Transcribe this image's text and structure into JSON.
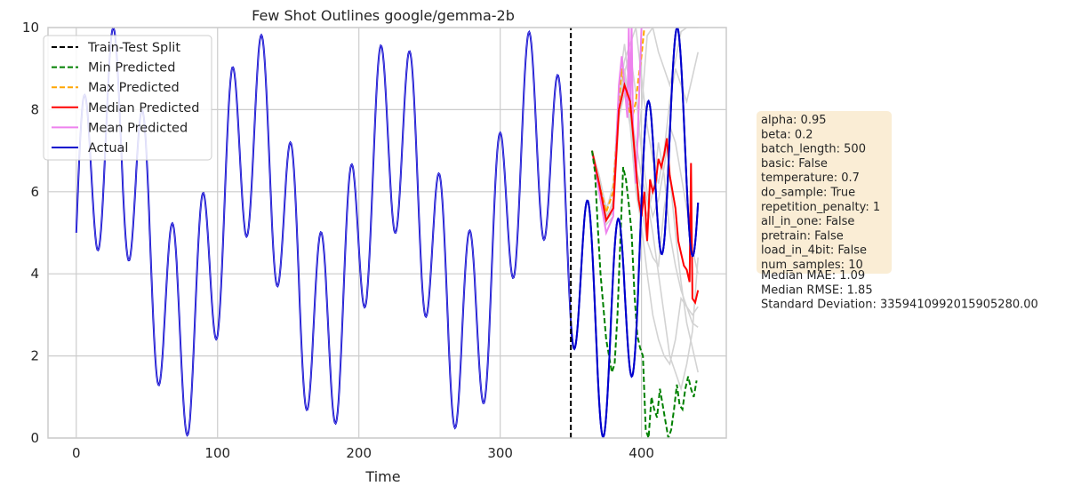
{
  "chart_data": {
    "type": "line",
    "title": "Few Shot Outlines google/gemma-2b",
    "xlabel": "Time",
    "ylabel": "",
    "xlim": [
      -20,
      460
    ],
    "ylim": [
      0,
      10
    ],
    "x_ticks": [
      0,
      100,
      200,
      300,
      400
    ],
    "y_ticks": [
      0,
      2,
      4,
      6,
      8,
      10
    ],
    "grid": true,
    "legend_position": "top-left",
    "split_x": 350,
    "actual_formula": "5 + 2.5*sin(2*pi*t/21) + 2.5*sin(2*pi*t/100), t = 0..440 (approx.)",
    "series": [
      {
        "name": "Train-Test Split",
        "color": "#000000",
        "style": "dashed",
        "x": [
          350,
          350
        ],
        "y": [
          0,
          10
        ]
      },
      {
        "name": "Min Predicted",
        "color": "#008000",
        "style": "dashed",
        "x": [
          365,
          367,
          369,
          371,
          373,
          375,
          377,
          379,
          381,
          383,
          385,
          387,
          389,
          391,
          393,
          395,
          397,
          399,
          401,
          403,
          405,
          407,
          409,
          411,
          413,
          415,
          417,
          419,
          421,
          423,
          425,
          427,
          429,
          431,
          433,
          435,
          437,
          439
        ],
        "y": [
          7.0,
          6.5,
          5.2,
          4.0,
          3.2,
          2.4,
          2.0,
          1.6,
          1.8,
          3.0,
          4.8,
          6.6,
          6.3,
          5.7,
          5.0,
          3.5,
          2.5,
          2.2,
          2.0,
          0.2,
          0.0,
          1.0,
          0.7,
          0.5,
          1.2,
          0.8,
          0.4,
          0.0,
          0.2,
          0.7,
          1.3,
          0.8,
          0.7,
          1.2,
          1.5,
          1.2,
          1.0,
          1.4
        ]
      },
      {
        "name": "Max Predicted",
        "color": "#ffa500",
        "style": "dashed",
        "x": [
          365,
          370,
          375,
          380,
          384,
          386,
          388,
          390,
          392,
          394,
          396,
          398,
          400,
          402
        ],
        "y": [
          7.0,
          6.2,
          5.5,
          6.0,
          8.2,
          9.0,
          8.6,
          8.2,
          7.9,
          7.9,
          8.2,
          8.8,
          9.3,
          10.0
        ]
      },
      {
        "name": "Median Predicted",
        "color": "#ff0000",
        "style": "solid",
        "x": [
          365,
          370,
          375,
          380,
          384,
          388,
          392,
          396,
          398,
          400,
          402,
          404,
          406,
          408,
          410,
          412,
          414,
          416,
          418,
          420,
          422,
          424,
          426,
          428,
          430,
          432,
          434,
          435,
          436,
          438,
          440
        ],
        "y": [
          7.0,
          6.2,
          5.3,
          5.6,
          8.0,
          8.6,
          8.2,
          6.6,
          5.8,
          5.4,
          6.0,
          4.8,
          6.3,
          6.0,
          6.2,
          6.8,
          6.6,
          6.9,
          7.3,
          6.4,
          6.0,
          5.6,
          4.8,
          4.5,
          4.2,
          4.1,
          3.8,
          6.7,
          3.4,
          3.3,
          3.6
        ]
      },
      {
        "name": "Mean Predicted",
        "color": "#ee82ee",
        "style": "solid",
        "x": [
          365,
          370,
          375,
          380,
          384,
          386,
          388,
          390,
          391,
          392,
          393,
          394,
          396,
          398,
          400,
          402,
          403,
          404,
          405,
          406
        ],
        "y": [
          7.0,
          6.0,
          5.0,
          5.4,
          8.6,
          9.3,
          8.6,
          7.8,
          10.0,
          8.0,
          10.0,
          7.6,
          6.2,
          8.0,
          10.0,
          10.0,
          10.0,
          10.0,
          10.0,
          10.0
        ]
      },
      {
        "name": "Actual",
        "color": "#0000cd",
        "style": "solid",
        "x_range": [
          0,
          440
        ]
      }
    ],
    "sample_lines_color": "#d3d3d3",
    "sample_lines": [
      {
        "x": [
          365,
          370,
          375,
          380,
          384,
          388,
          392,
          396,
          400,
          404,
          408,
          412,
          416,
          420,
          424,
          428,
          432,
          436,
          440
        ],
        "y": [
          7.0,
          6.2,
          5.3,
          5.8,
          8.6,
          9.6,
          8.4,
          6.8,
          8.0,
          9.8,
          10.0,
          9.4,
          9.0,
          8.6,
          9.2,
          9.9,
          10.0,
          10.0,
          10.0
        ]
      },
      {
        "x": [
          365,
          370,
          375,
          380,
          384,
          388,
          392,
          396,
          400,
          404,
          408,
          412,
          416,
          420,
          424,
          428,
          432,
          436,
          440
        ],
        "y": [
          7.0,
          6.4,
          5.6,
          6.0,
          8.0,
          8.8,
          8.0,
          6.6,
          6.0,
          5.4,
          6.0,
          7.2,
          6.4,
          5.0,
          4.2,
          3.6,
          3.2,
          3.0,
          3.2
        ]
      },
      {
        "x": [
          365,
          370,
          375,
          380,
          384,
          388,
          392,
          396,
          400,
          404,
          408,
          412,
          416,
          420,
          424,
          428,
          432,
          436,
          440
        ],
        "y": [
          7.0,
          6.0,
          5.2,
          5.4,
          7.8,
          8.4,
          7.6,
          6.0,
          5.2,
          4.0,
          3.0,
          2.4,
          2.0,
          1.8,
          2.4,
          3.4,
          3.2,
          2.8,
          2.7
        ]
      },
      {
        "x": [
          365,
          370,
          375,
          380,
          384,
          388,
          392,
          396,
          400,
          404,
          408,
          412,
          416,
          420,
          424,
          428,
          432,
          436,
          440
        ],
        "y": [
          7.0,
          6.3,
          5.4,
          5.7,
          8.2,
          9.0,
          8.0,
          7.2,
          6.4,
          5.8,
          5.0,
          4.0,
          3.0,
          2.0,
          1.6,
          1.2,
          1.8,
          2.6,
          4.4
        ]
      },
      {
        "x": [
          365,
          370,
          375,
          380,
          384,
          388,
          392,
          396,
          400,
          404,
          408,
          412,
          416,
          420,
          424,
          428,
          432,
          436,
          440
        ],
        "y": [
          7.0,
          6.1,
          5.5,
          6.2,
          8.4,
          9.2,
          9.6,
          10.0,
          8.8,
          7.6,
          6.8,
          6.2,
          7.0,
          8.2,
          9.0,
          8.6,
          8.2,
          8.8,
          9.4
        ]
      },
      {
        "x": [
          365,
          370,
          375,
          380,
          384,
          388,
          392,
          396,
          400,
          404,
          408,
          412,
          416,
          420,
          424,
          428,
          432,
          436,
          440
        ],
        "y": [
          7.0,
          6.2,
          5.3,
          5.5,
          7.9,
          8.7,
          7.8,
          6.4,
          5.6,
          4.8,
          4.4,
          4.2,
          5.6,
          6.4,
          5.0,
          3.8,
          2.8,
          2.2,
          1.6
        ]
      },
      {
        "x": [
          365,
          370,
          375,
          380,
          384,
          388,
          392,
          396,
          400,
          404,
          408,
          412,
          416,
          420,
          424,
          428,
          432,
          436,
          440
        ],
        "y": [
          7.0,
          6.4,
          5.6,
          6.0,
          8.0,
          8.9,
          9.4,
          8.4,
          7.0,
          6.0,
          5.4,
          5.8,
          6.6,
          7.6,
          7.2,
          6.4,
          5.6,
          4.6,
          4.0
        ]
      }
    ],
    "legend": [
      "Train-Test Split",
      "Min Predicted",
      "Max Predicted",
      "Median Predicted",
      "Mean Predicted",
      "Actual"
    ],
    "info_box_color": "#f5deb3",
    "info_box": [
      "alpha: 0.95",
      "beta: 0.2",
      "batch_length: 500",
      "basic: False",
      "temperature: 0.7",
      "do_sample: True",
      "repetition_penalty: 1",
      "all_in_one: False",
      "pretrain: False",
      "load_in_4bit: False",
      "num_samples: 10"
    ],
    "metrics": [
      "Median MAE: 1.09",
      "Median RMSE: 1.85",
      "Standard Deviation: 3359410992015905280.00"
    ]
  }
}
